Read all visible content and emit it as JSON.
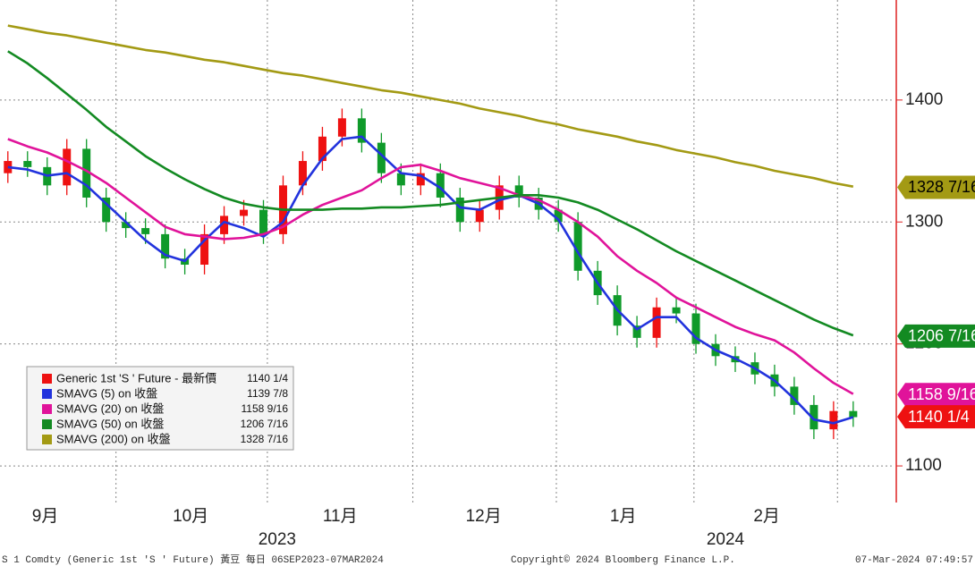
{
  "chart_data": {
    "type": "candlestick",
    "open": [
      1340,
      1350,
      1345,
      1330,
      1360,
      1320,
      1300,
      1295,
      1290,
      1270,
      1265,
      1290,
      1305,
      1310,
      1290,
      1330,
      1350,
      1370,
      1385,
      1365,
      1340,
      1330,
      1340,
      1320,
      1300,
      1310,
      1330,
      1320,
      1310,
      1300,
      1260,
      1240,
      1215,
      1205,
      1230,
      1225,
      1200,
      1190,
      1185,
      1175,
      1165,
      1150,
      1130,
      1145
    ],
    "high": [
      1358,
      1358,
      1353,
      1368,
      1368,
      1328,
      1308,
      1303,
      1298,
      1278,
      1298,
      1313,
      1318,
      1318,
      1338,
      1358,
      1378,
      1393,
      1393,
      1373,
      1348,
      1348,
      1348,
      1328,
      1318,
      1338,
      1338,
      1328,
      1318,
      1308,
      1268,
      1248,
      1223,
      1238,
      1238,
      1233,
      1208,
      1198,
      1193,
      1183,
      1173,
      1158,
      1153,
      1153
    ],
    "low": [
      1332,
      1337,
      1322,
      1322,
      1312,
      1292,
      1287,
      1282,
      1262,
      1257,
      1257,
      1282,
      1297,
      1282,
      1282,
      1322,
      1342,
      1362,
      1357,
      1332,
      1322,
      1322,
      1312,
      1292,
      1292,
      1302,
      1312,
      1302,
      1292,
      1252,
      1232,
      1207,
      1197,
      1197,
      1217,
      1192,
      1182,
      1177,
      1167,
      1157,
      1142,
      1122,
      1122,
      1132
    ],
    "close": [
      1350,
      1345,
      1330,
      1360,
      1320,
      1300,
      1295,
      1290,
      1270,
      1265,
      1290,
      1305,
      1310,
      1290,
      1330,
      1350,
      1370,
      1385,
      1365,
      1340,
      1330,
      1340,
      1320,
      1300,
      1310,
      1330,
      1320,
      1310,
      1300,
      1260,
      1240,
      1215,
      1205,
      1230,
      1225,
      1200,
      1190,
      1185,
      1175,
      1165,
      1150,
      1130,
      1145,
      1140
    ],
    "up_color": "#ee1111",
    "down_color": "#0f9a2a",
    "series": [
      {
        "name": "SMAVG (5)  on 收盤",
        "color": "#2233dd",
        "values": [
          1345,
          1343,
          1338,
          1340,
          1330,
          1315,
          1300,
          1285,
          1273,
          1268,
          1285,
          1300,
          1295,
          1288,
          1300,
          1330,
          1352,
          1368,
          1370,
          1355,
          1340,
          1338,
          1328,
          1312,
          1310,
          1318,
          1322,
          1315,
          1302,
          1275,
          1250,
          1228,
          1212,
          1222,
          1222,
          1205,
          1195,
          1188,
          1180,
          1170,
          1155,
          1138,
          1135,
          1140
        ]
      },
      {
        "name": "SMAVG (20)  on 收盤",
        "color": "#e0139a",
        "values": [
          1368,
          1362,
          1357,
          1350,
          1342,
          1332,
          1320,
          1308,
          1296,
          1290,
          1288,
          1286,
          1287,
          1290,
          1296,
          1306,
          1314,
          1320,
          1326,
          1336,
          1345,
          1347,
          1342,
          1336,
          1332,
          1328,
          1322,
          1318,
          1310,
          1300,
          1288,
          1272,
          1260,
          1250,
          1238,
          1230,
          1222,
          1214,
          1208,
          1203,
          1193,
          1180,
          1168,
          1159
        ]
      },
      {
        "name": "SMAVG (50)  on 收盤",
        "color": "#138a22",
        "values": [
          1440,
          1430,
          1418,
          1405,
          1392,
          1378,
          1366,
          1354,
          1344,
          1335,
          1327,
          1320,
          1315,
          1312,
          1310,
          1310,
          1310,
          1311,
          1311,
          1312,
          1312,
          1313,
          1314,
          1316,
          1318,
          1320,
          1322,
          1322,
          1320,
          1316,
          1310,
          1302,
          1294,
          1285,
          1276,
          1268,
          1260,
          1252,
          1244,
          1236,
          1228,
          1220,
          1213,
          1207
        ]
      },
      {
        "name": "SMAVG (200) on 收盤",
        "color": "#a39a14",
        "values": [
          1461,
          1458,
          1455,
          1453,
          1450,
          1447,
          1444,
          1441,
          1439,
          1436,
          1433,
          1431,
          1428,
          1425,
          1422,
          1420,
          1417,
          1414,
          1411,
          1408,
          1406,
          1403,
          1400,
          1397,
          1393,
          1390,
          1387,
          1383,
          1380,
          1376,
          1373,
          1370,
          1366,
          1363,
          1359,
          1356,
          1353,
          1349,
          1346,
          1342,
          1339,
          1336,
          1332,
          1329
        ]
      }
    ],
    "legend": [
      {
        "name": "Generic 1st 'S ' Future - 最新價",
        "color": "#ee1111",
        "value": {
          "value": 1140.25,
          "label": "1140 1/4"
        }
      },
      {
        "name": "SMAVG (5)  on 收盤",
        "color": "#2233dd",
        "value": {
          "value": 1139.875,
          "label": "1139 7/8"
        }
      },
      {
        "name": "SMAVG (20)  on 收盤",
        "color": "#e0139a",
        "value": {
          "value": 1158.5625,
          "label": "1158 9/16"
        }
      },
      {
        "name": "SMAVG (50)  on 收盤",
        "color": "#138a22",
        "value": {
          "value": 1206.4375,
          "label": "1206 7/16"
        }
      },
      {
        "name": "SMAVG (200) on 收盤",
        "color": "#a39a14",
        "value": {
          "value": 1328.4375,
          "label": "1328 7/16"
        }
      }
    ],
    "price_tags": [
      {
        "value": 1328.4375,
        "label": "1328 7/16",
        "color": "#a39a14",
        "text_color": "#000000"
      },
      {
        "value": 1206.4375,
        "label": "1206 7/16",
        "color": "#138a22",
        "text_color": "#ffffff"
      },
      {
        "value": 1158.5625,
        "label": "1158 9/16",
        "color": "#e0139a",
        "text_color": "#ffffff"
      },
      {
        "value": 1140.25,
        "label": "1140 1/4",
        "color": "#ee1111",
        "text_color": "#ffffff"
      }
    ],
    "ylim": [
      1070,
      1482
    ],
    "yticks": [
      1100,
      1200,
      1300,
      1400
    ],
    "xlim": [
      -0.4,
      45.1
    ],
    "xticks": [
      {
        "value": 1.9,
        "label": "9月"
      },
      {
        "value": 9.3,
        "label": "10月"
      },
      {
        "value": 16.9,
        "label": "11月"
      },
      {
        "value": 24.2,
        "label": "12月"
      },
      {
        "value": 31.3,
        "label": "1月"
      },
      {
        "value": 38.6,
        "label": "2月"
      }
    ],
    "xgrid": [
      5.5,
      13.2,
      20.6,
      27.9,
      34.9,
      42.2
    ],
    "year_labels": [
      {
        "value": 13.7,
        "label": "2023"
      },
      {
        "value": 36.5,
        "label": "2024"
      }
    ],
    "footer_left": "S 1 Comdty (Generic 1st 'S ' Future) 黃豆   每日 06SEP2023-07MAR2024",
    "footer_center": "Copyright© 2024 Bloomberg Finance L.P.",
    "footer_right": "07-Mar-2024 07:49:57"
  }
}
